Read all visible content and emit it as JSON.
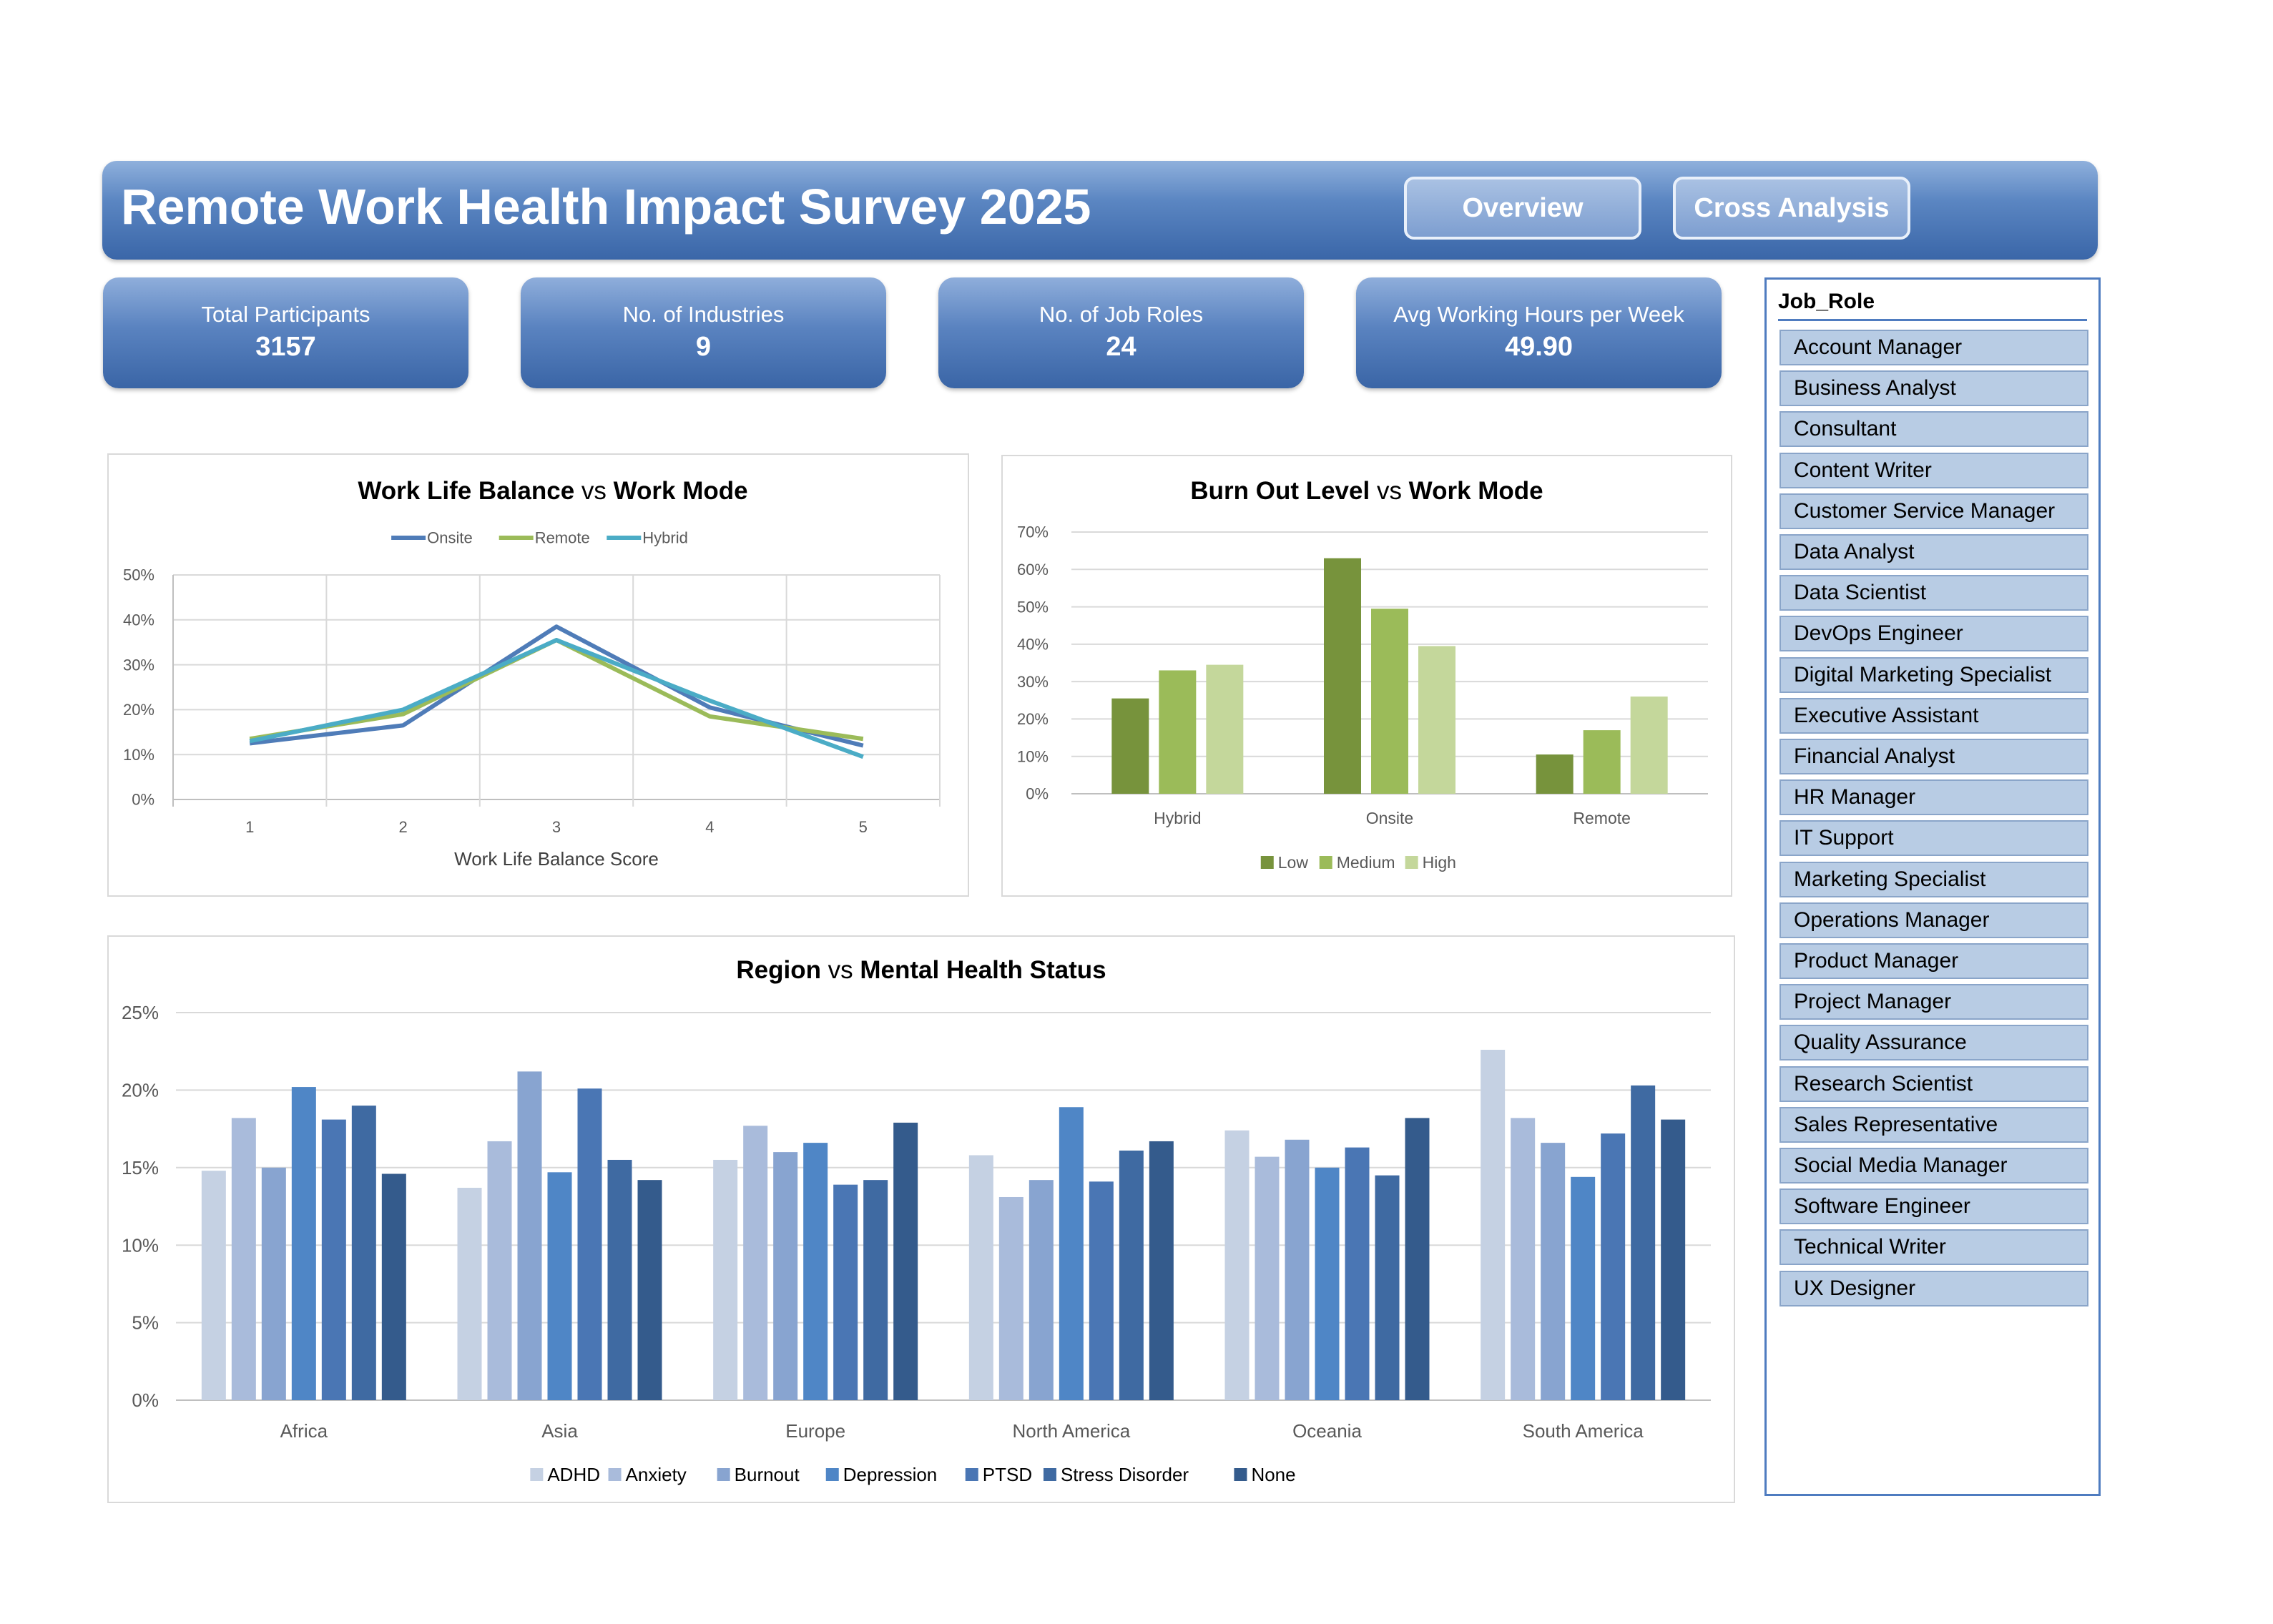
{
  "header": {
    "title": "Remote Work Health Impact Survey 2025",
    "nav": [
      "Overview",
      "Cross Analysis"
    ]
  },
  "kpis": [
    {
      "label": "Total Participants",
      "value": "3157"
    },
    {
      "label": "No. of Industries",
      "value": "9"
    },
    {
      "label": "No. of Job Roles",
      "value": "24"
    },
    {
      "label": "Avg Working Hours per Week",
      "value": "49.90"
    }
  ],
  "slicer": {
    "title": "Job_Role",
    "items": [
      "Account Manager",
      "Business Analyst",
      "Consultant",
      "Content Writer",
      "Customer Service Manager",
      "Data Analyst",
      "Data Scientist",
      "DevOps Engineer",
      "Digital Marketing Specialist",
      "Executive Assistant",
      "Financial Analyst",
      "HR Manager",
      "IT Support",
      "Marketing Specialist",
      "Operations Manager",
      "Product Manager",
      "Project Manager",
      "Quality Assurance",
      "Research Scientist",
      "Sales Representative",
      "Social Media Manager",
      "Software Engineer",
      "Technical Writer",
      "UX Designer"
    ]
  },
  "colors": {
    "header_top": "#8fb0dc",
    "header_bottom": "#3a66a8",
    "onsite": "#4f7cb8",
    "remote": "#9bbb59",
    "hybrid": "#4bacc6",
    "low": "#77933c",
    "medium": "#9bbb59",
    "high": "#c4d79b"
  },
  "chart_data": [
    {
      "type": "line",
      "title_parts": [
        "Work Life Balance",
        " vs ",
        "Work Mode"
      ],
      "x": [
        1,
        2,
        3,
        4,
        5
      ],
      "xlabel": "Work Life Balance Score",
      "ylim": [
        0,
        0.5
      ],
      "yticks": [
        "0%",
        "10%",
        "20%",
        "30%",
        "40%",
        "50%"
      ],
      "legend_position": "top",
      "series": [
        {
          "name": "Onsite",
          "color": "#4f7cb8",
          "values": [
            0.125,
            0.165,
            0.385,
            0.205,
            0.12
          ]
        },
        {
          "name": "Remote",
          "color": "#9bbb59",
          "values": [
            0.135,
            0.19,
            0.355,
            0.185,
            0.135
          ]
        },
        {
          "name": "Hybrid",
          "color": "#4bacc6",
          "values": [
            0.13,
            0.2,
            0.355,
            0.22,
            0.095
          ]
        }
      ]
    },
    {
      "type": "bar",
      "title_parts": [
        "Burn Out Level",
        " vs ",
        "Work Mode"
      ],
      "categories": [
        "Hybrid",
        "Onsite",
        "Remote"
      ],
      "ylim": [
        0,
        0.7
      ],
      "yticks": [
        "0%",
        "10%",
        "20%",
        "30%",
        "40%",
        "50%",
        "60%",
        "70%"
      ],
      "legend_position": "bottom",
      "series": [
        {
          "name": "Low",
          "color": "#77933c",
          "values": [
            0.255,
            0.63,
            0.105
          ]
        },
        {
          "name": "Medium",
          "color": "#9bbb59",
          "values": [
            0.33,
            0.495,
            0.17
          ]
        },
        {
          "name": "High",
          "color": "#c4d79b",
          "values": [
            0.345,
            0.395,
            0.26
          ]
        }
      ]
    },
    {
      "type": "bar",
      "title_parts": [
        "Region",
        " vs ",
        "Mental Health Status"
      ],
      "categories": [
        "Africa",
        "Asia",
        "Europe",
        "North America",
        "Oceania",
        "South America"
      ],
      "ylim": [
        0,
        0.25
      ],
      "yticks": [
        "0%",
        "5%",
        "10%",
        "15%",
        "20%",
        "25%"
      ],
      "legend_position": "bottom",
      "series": [
        {
          "name": "ADHD",
          "color": "#c5d1e3",
          "values": [
            0.148,
            0.137,
            0.155,
            0.158,
            0.174,
            0.226
          ]
        },
        {
          "name": "Anxiety",
          "color": "#a9bbdb",
          "values": [
            0.182,
            0.167,
            0.177,
            0.131,
            0.157,
            0.182
          ]
        },
        {
          "name": "Burnout",
          "color": "#88a4d0",
          "values": [
            0.15,
            0.212,
            0.16,
            0.142,
            0.168,
            0.166
          ]
        },
        {
          "name": "Depression",
          "color": "#4f86c6",
          "values": [
            0.202,
            0.147,
            0.166,
            0.189,
            0.15,
            0.144
          ]
        },
        {
          "name": "PTSD",
          "color": "#4a76b4",
          "values": [
            0.181,
            0.201,
            0.139,
            0.141,
            0.163,
            0.172
          ]
        },
        {
          "name": "Stress Disorder",
          "color": "#3f6aa2",
          "values": [
            0.19,
            0.155,
            0.142,
            0.161,
            0.145,
            0.203
          ]
        },
        {
          "name": "None",
          "color": "#345b8c",
          "values": [
            0.146,
            0.142,
            0.179,
            0.167,
            0.182,
            0.181
          ]
        }
      ]
    }
  ]
}
